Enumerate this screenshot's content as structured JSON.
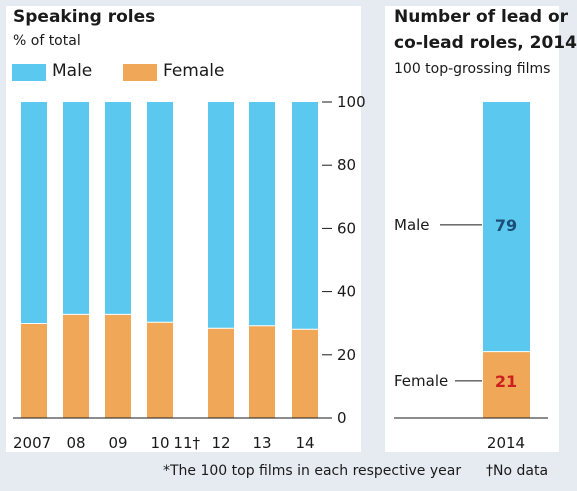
{
  "colors": {
    "male": "#5bc8f0",
    "female": "#f0a858",
    "background": "#e6ebf1",
    "panel": "#ffffff",
    "male_value": "#1c4e78",
    "female_value": "#cc1f1f"
  },
  "chart_data": [
    {
      "type": "bar",
      "title": "Speaking roles",
      "subtitle": "% of total",
      "legend": [
        {
          "name": "Male",
          "color": "#5bc8f0"
        },
        {
          "name": "Female",
          "color": "#f0a858"
        }
      ],
      "categories": [
        "2007",
        "08",
        "09",
        "10",
        "11†",
        "12",
        "13",
        "14"
      ],
      "series": [
        {
          "name": "Female",
          "values": [
            29.9,
            32.8,
            32.8,
            30.3,
            null,
            28.4,
            29.2,
            28.1
          ]
        },
        {
          "name": "Male",
          "values": [
            70.1,
            67.2,
            67.2,
            69.7,
            null,
            71.6,
            70.8,
            71.9
          ]
        }
      ],
      "stacked": true,
      "ylim": [
        0,
        100
      ],
      "yticks": [
        "0",
        "20",
        "40",
        "60",
        "80",
        "100"
      ],
      "yaxis_position": "right",
      "grid": false
    },
    {
      "type": "bar",
      "title_line1": "Number of lead or",
      "title_line2": "co-lead roles, 2014",
      "subtitle": "100 top-grossing films",
      "categories": [
        "2014"
      ],
      "series": [
        {
          "name": "Female",
          "values": [
            21
          ]
        },
        {
          "name": "Male",
          "values": [
            79
          ]
        }
      ],
      "stacked": true,
      "ylim": [
        0,
        100
      ],
      "annotations": [
        {
          "label": "Male",
          "value": "79"
        },
        {
          "label": "Female",
          "value": "21"
        }
      ]
    }
  ],
  "footnotes": {
    "asterisk": "*The 100 top films in each respective year",
    "dagger": "†No data"
  }
}
